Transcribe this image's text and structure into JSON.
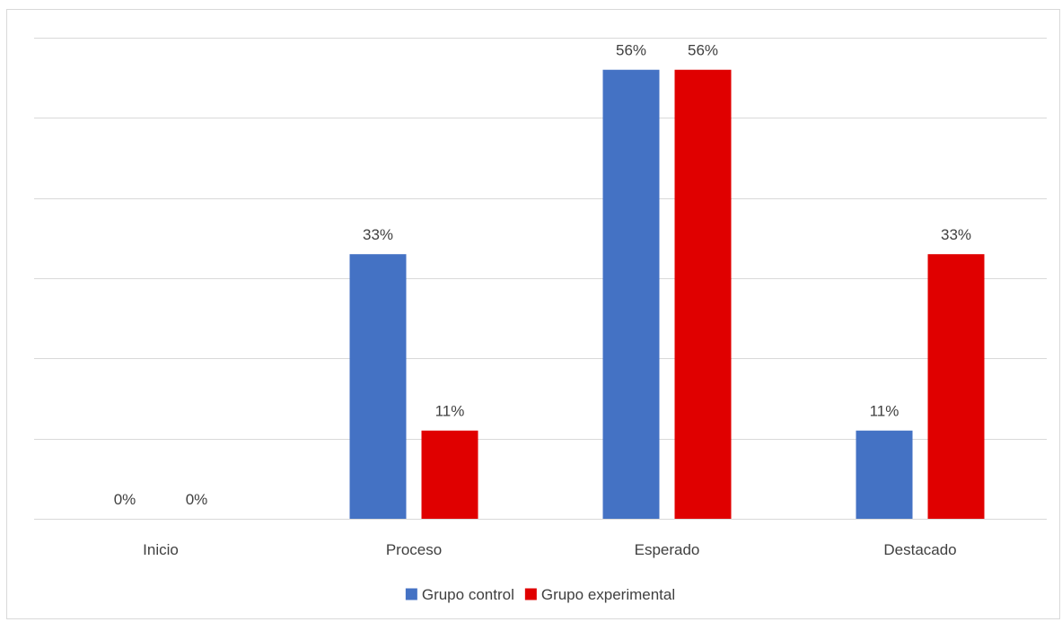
{
  "chart_data": {
    "type": "bar",
    "categories": [
      "Inicio",
      "Proceso",
      "Esperado",
      "Destacado"
    ],
    "series": [
      {
        "name": "Grupo control",
        "values": [
          0,
          33,
          56,
          11
        ],
        "labels": [
          "0%",
          "33%",
          "56%",
          "11%"
        ],
        "color": "#4472C4"
      },
      {
        "name": "Grupo experimental",
        "values": [
          0,
          11,
          56,
          33
        ],
        "labels": [
          "0%",
          "11%",
          "56%",
          "33%"
        ],
        "color": "#E00000"
      }
    ],
    "ylim": [
      0,
      60
    ],
    "y_gridlines": [
      0,
      10,
      20,
      30,
      40,
      50,
      60
    ],
    "grid": true,
    "legend": "bottom",
    "gridline_color": "#d9d9d9"
  }
}
